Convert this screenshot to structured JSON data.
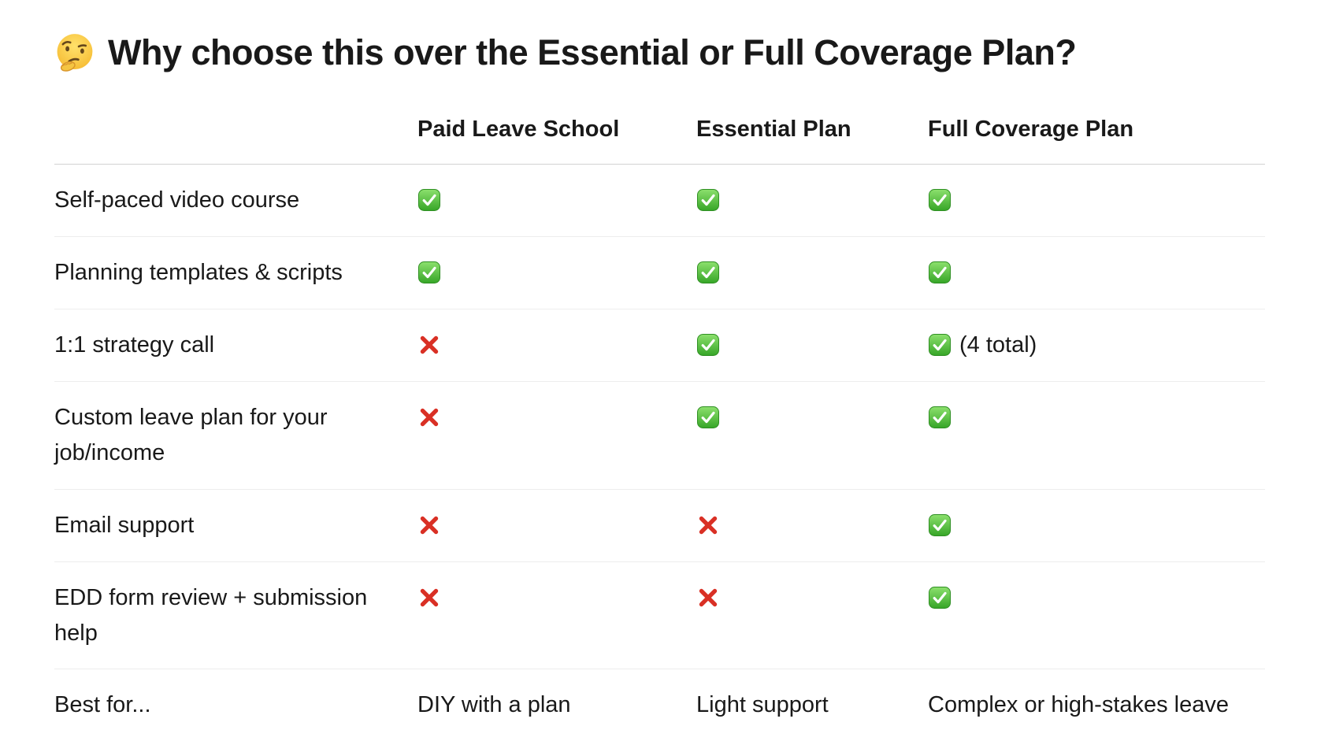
{
  "page": {
    "background": "#ffffff",
    "text_color": "#191919"
  },
  "title": {
    "emoji_name": "thinking-face",
    "emoji_char": "🤔",
    "prefix": "Why choose ",
    "emphasis": "this",
    "suffix": " over the Essential or Full Coverage Plan?"
  },
  "table": {
    "header": {
      "feature_column": "",
      "columns": [
        "Paid Leave School",
        "Essential Plan",
        "Full Coverage Plan"
      ]
    },
    "icons": {
      "check": {
        "name": "check-icon",
        "unicode": "✅",
        "color": "#3fa433"
      },
      "cross": {
        "name": "cross-icon",
        "unicode": "❌",
        "color": "#d93025"
      }
    },
    "rows": [
      {
        "feature": "Self-paced video course",
        "cells": [
          {
            "icon": "check"
          },
          {
            "icon": "check"
          },
          {
            "icon": "check"
          }
        ]
      },
      {
        "feature": "Planning templates & scripts",
        "cells": [
          {
            "icon": "check"
          },
          {
            "icon": "check"
          },
          {
            "icon": "check"
          }
        ]
      },
      {
        "feature": "1:1 strategy call",
        "cells": [
          {
            "icon": "cross"
          },
          {
            "icon": "check"
          },
          {
            "icon": "check",
            "note": "(4 total)"
          }
        ]
      },
      {
        "feature": "Custom leave plan for your job/income",
        "cells": [
          {
            "icon": "cross"
          },
          {
            "icon": "check"
          },
          {
            "icon": "check"
          }
        ]
      },
      {
        "feature": "Email support",
        "cells": [
          {
            "icon": "cross"
          },
          {
            "icon": "cross"
          },
          {
            "icon": "check"
          }
        ]
      },
      {
        "feature": "EDD form review + submission help",
        "cells": [
          {
            "icon": "cross"
          },
          {
            "icon": "cross"
          },
          {
            "icon": "check"
          }
        ]
      },
      {
        "feature": "Best for...",
        "cells": [
          {
            "text": "DIY with a plan"
          },
          {
            "text": "Light support"
          },
          {
            "text": "Complex or high-stakes leave"
          }
        ]
      }
    ]
  },
  "colors": {
    "header_divider": "#d2d2d2",
    "row_divider": "#ededed",
    "check_green_top": "#8ce06d",
    "check_green_bottom": "#36a527",
    "cross_red": "#d93025",
    "emoji_yellow": "#ffd93b"
  }
}
